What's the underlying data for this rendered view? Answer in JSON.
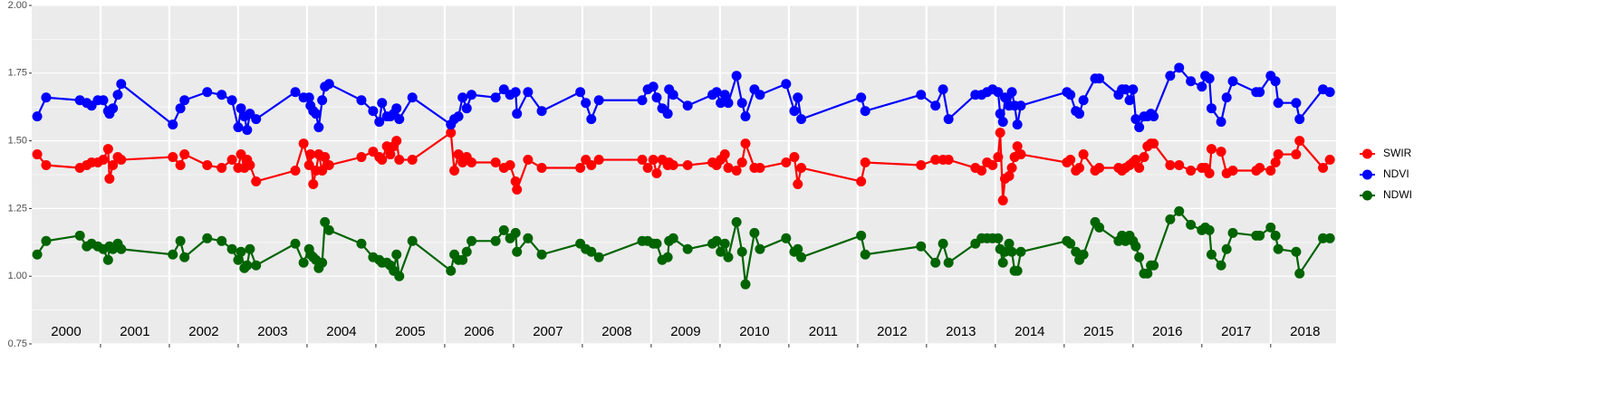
{
  "chart_data": {
    "type": "line",
    "x": [
      2000.08,
      2000.21,
      2000.7,
      2000.8,
      2000.87,
      2000.96,
      2001.04,
      2001.11,
      2001.13,
      2001.18,
      2001.25,
      2001.3,
      2002.05,
      2002.16,
      2002.22,
      2002.55,
      2002.76,
      2002.91,
      2003.0,
      2003.04,
      2003.09,
      2003.13,
      2003.17,
      2003.26,
      2003.83,
      2003.95,
      2004.03,
      2004.05,
      2004.09,
      2004.13,
      2004.17,
      2004.22,
      2004.26,
      2004.32,
      2004.79,
      2004.96,
      2005.05,
      2005.09,
      2005.16,
      2005.21,
      2005.26,
      2005.3,
      2005.34,
      2005.53,
      2006.09,
      2006.14,
      2006.2,
      2006.26,
      2006.32,
      2006.39,
      2006.74,
      2006.86,
      2006.95,
      2007.03,
      2007.05,
      2007.21,
      2007.41,
      2007.97,
      2008.05,
      2008.13,
      2008.24,
      2008.87,
      2008.95,
      2009.03,
      2009.08,
      2009.16,
      2009.24,
      2009.26,
      2009.32,
      2009.53,
      2009.89,
      2009.95,
      2010.01,
      2010.07,
      2010.12,
      2010.24,
      2010.32,
      2010.37,
      2010.5,
      2010.58,
      2010.96,
      2011.08,
      2011.13,
      2011.18,
      2012.05,
      2012.11,
      2012.92,
      2013.13,
      2013.24,
      2013.32,
      2013.71,
      2013.8,
      2013.88,
      2013.96,
      2014.04,
      2014.07,
      2014.11,
      2014.14,
      2014.2,
      2014.24,
      2014.28,
      2014.32,
      2014.37,
      2015.04,
      2015.09,
      2015.17,
      2015.22,
      2015.28,
      2015.45,
      2015.51,
      2015.79,
      2015.84,
      2015.89,
      2015.95,
      2016.0,
      2016.04,
      2016.09,
      2016.16,
      2016.21,
      2016.26,
      2016.3,
      2016.54,
      2016.67,
      2016.84,
      2017.0,
      2017.05,
      2017.11,
      2017.14,
      2017.28,
      2017.36,
      2017.45,
      2017.79,
      2017.84,
      2018.0,
      2018.07,
      2018.11,
      2018.37,
      2018.42,
      2018.76,
      2018.86
    ],
    "series": [
      {
        "name": "SWIR",
        "color": "#ff0000",
        "values": [
          1.45,
          1.41,
          1.4,
          1.41,
          1.42,
          1.42,
          1.43,
          1.47,
          1.36,
          1.41,
          1.44,
          1.43,
          1.44,
          1.41,
          1.45,
          1.41,
          1.4,
          1.43,
          1.4,
          1.45,
          1.4,
          1.43,
          1.41,
          1.35,
          1.39,
          1.49,
          1.41,
          1.45,
          1.34,
          1.39,
          1.45,
          1.39,
          1.44,
          1.41,
          1.44,
          1.46,
          1.44,
          1.43,
          1.48,
          1.45,
          1.48,
          1.5,
          1.43,
          1.43,
          1.53,
          1.39,
          1.45,
          1.42,
          1.44,
          1.42,
          1.42,
          1.4,
          1.41,
          1.35,
          1.32,
          1.43,
          1.4,
          1.4,
          1.43,
          1.41,
          1.43,
          1.43,
          1.4,
          1.43,
          1.38,
          1.43,
          1.41,
          1.42,
          1.41,
          1.41,
          1.42,
          1.41,
          1.43,
          1.45,
          1.4,
          1.39,
          1.42,
          1.49,
          1.4,
          1.4,
          1.42,
          1.44,
          1.34,
          1.4,
          1.35,
          1.42,
          1.41,
          1.43,
          1.43,
          1.43,
          1.4,
          1.39,
          1.42,
          1.41,
          1.44,
          1.53,
          1.28,
          1.36,
          1.37,
          1.4,
          1.44,
          1.48,
          1.45,
          1.42,
          1.43,
          1.39,
          1.4,
          1.45,
          1.39,
          1.4,
          1.4,
          1.39,
          1.4,
          1.41,
          1.42,
          1.43,
          1.4,
          1.44,
          1.48,
          1.49,
          1.49,
          1.41,
          1.41,
          1.39,
          1.4,
          1.4,
          1.38,
          1.47,
          1.46,
          1.38,
          1.39,
          1.39,
          1.4,
          1.39,
          1.42,
          1.45,
          1.45,
          1.5,
          1.4,
          1.43
        ]
      },
      {
        "name": "NDVI",
        "color": "#0000ff",
        "values": [
          1.59,
          1.66,
          1.65,
          1.64,
          1.63,
          1.65,
          1.65,
          1.61,
          1.6,
          1.62,
          1.67,
          1.71,
          1.56,
          1.62,
          1.65,
          1.68,
          1.67,
          1.65,
          1.55,
          1.62,
          1.59,
          1.54,
          1.6,
          1.58,
          1.68,
          1.66,
          1.66,
          1.63,
          1.61,
          1.6,
          1.55,
          1.65,
          1.7,
          1.71,
          1.65,
          1.61,
          1.57,
          1.64,
          1.59,
          1.59,
          1.6,
          1.62,
          1.58,
          1.66,
          1.56,
          1.58,
          1.59,
          1.66,
          1.62,
          1.67,
          1.66,
          1.69,
          1.67,
          1.68,
          1.6,
          1.68,
          1.61,
          1.68,
          1.64,
          1.58,
          1.65,
          1.65,
          1.69,
          1.7,
          1.66,
          1.62,
          1.6,
          1.69,
          1.67,
          1.63,
          1.67,
          1.68,
          1.64,
          1.67,
          1.64,
          1.74,
          1.64,
          1.59,
          1.69,
          1.67,
          1.71,
          1.61,
          1.66,
          1.58,
          1.66,
          1.61,
          1.67,
          1.63,
          1.69,
          1.58,
          1.67,
          1.67,
          1.68,
          1.69,
          1.68,
          1.6,
          1.57,
          1.66,
          1.63,
          1.68,
          1.63,
          1.56,
          1.63,
          1.68,
          1.67,
          1.61,
          1.6,
          1.65,
          1.73,
          1.73,
          1.67,
          1.69,
          1.69,
          1.65,
          1.69,
          1.58,
          1.55,
          1.59,
          1.59,
          1.6,
          1.59,
          1.74,
          1.77,
          1.72,
          1.7,
          1.74,
          1.73,
          1.62,
          1.57,
          1.66,
          1.72,
          1.68,
          1.68,
          1.74,
          1.72,
          1.64,
          1.64,
          1.58,
          1.69,
          1.68
        ]
      },
      {
        "name": "NDWI",
        "color": "#006400",
        "values": [
          1.08,
          1.13,
          1.15,
          1.11,
          1.12,
          1.11,
          1.1,
          1.06,
          1.11,
          1.1,
          1.12,
          1.1,
          1.08,
          1.13,
          1.07,
          1.14,
          1.13,
          1.1,
          1.06,
          1.09,
          1.03,
          1.04,
          1.1,
          1.04,
          1.12,
          1.05,
          1.1,
          1.08,
          1.07,
          1.06,
          1.03,
          1.05,
          1.2,
          1.17,
          1.12,
          1.07,
          1.06,
          1.05,
          1.05,
          1.04,
          1.02,
          1.08,
          1.0,
          1.13,
          1.02,
          1.08,
          1.06,
          1.06,
          1.09,
          1.13,
          1.13,
          1.17,
          1.14,
          1.16,
          1.09,
          1.14,
          1.08,
          1.12,
          1.1,
          1.09,
          1.07,
          1.13,
          1.13,
          1.12,
          1.12,
          1.06,
          1.07,
          1.13,
          1.14,
          1.1,
          1.12,
          1.13,
          1.09,
          1.12,
          1.07,
          1.2,
          1.09,
          0.97,
          1.16,
          1.1,
          1.14,
          1.09,
          1.1,
          1.07,
          1.15,
          1.08,
          1.11,
          1.05,
          1.12,
          1.05,
          1.12,
          1.14,
          1.14,
          1.14,
          1.14,
          1.1,
          1.05,
          1.09,
          1.12,
          1.09,
          1.02,
          1.02,
          1.09,
          1.13,
          1.12,
          1.09,
          1.06,
          1.08,
          1.2,
          1.18,
          1.13,
          1.15,
          1.13,
          1.15,
          1.13,
          1.11,
          1.07,
          1.01,
          1.01,
          1.04,
          1.04,
          1.21,
          1.24,
          1.19,
          1.17,
          1.18,
          1.17,
          1.08,
          1.04,
          1.1,
          1.16,
          1.15,
          1.15,
          1.18,
          1.15,
          1.1,
          1.09,
          1.01,
          1.14,
          1.14
        ]
      }
    ],
    "xlim": [
      2000,
      2018.95
    ],
    "xticks": [
      2001,
      2002,
      2003,
      2004,
      2005,
      2006,
      2007,
      2008,
      2009,
      2010,
      2011,
      2012,
      2013,
      2014,
      2015,
      2016,
      2017,
      2018
    ],
    "ylim": [
      0.75,
      2.0
    ],
    "yticks": [
      {
        "value": 0.75,
        "label": "0.75"
      },
      {
        "value": 1,
        "label": "1.00"
      },
      {
        "value": 1.25,
        "label": "1.25"
      },
      {
        "value": 1.5,
        "label": "1.50"
      },
      {
        "value": 1.75,
        "label": "1.75"
      },
      {
        "value": 2,
        "label": "2.00"
      }
    ],
    "year_labels": [
      "2000",
      "2001",
      "2002",
      "2003",
      "2004",
      "2005",
      "2006",
      "2007",
      "2008",
      "2009",
      "2010",
      "2011",
      "2012",
      "2013",
      "2014",
      "2015",
      "2016",
      "2017",
      "2018"
    ],
    "grid": true,
    "legend": "right"
  }
}
